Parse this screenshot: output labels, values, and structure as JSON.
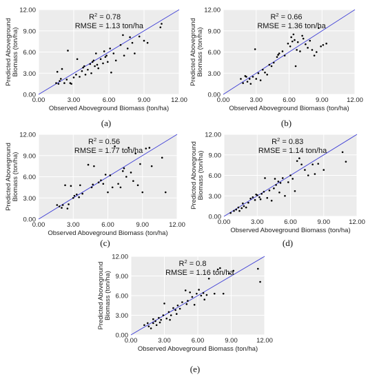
{
  "colors": {
    "panel_bg": "#ececec",
    "grid": "#ffffff",
    "point": "#000000",
    "fit_line": "#3b3bd6"
  },
  "chart_data": [
    {
      "type": "scatter",
      "panel_label": "(a)",
      "xlabel": "Observed Aboveground Biomass (ton/ha)",
      "ylabel": "Predicted Aboveground Biomass (ton/ha)",
      "xlim": [
        0,
        12
      ],
      "ylim": [
        0,
        12
      ],
      "grid": true,
      "x_ticks": [
        "0.00",
        "3.00",
        "6.00",
        "9.00",
        "12.00"
      ],
      "y_ticks": [
        "0.00",
        "3.00",
        "6.00",
        "9.00",
        "12.00"
      ],
      "r2_prefix": "R",
      "r2_sup": "2",
      "r2_value": " = 0.78",
      "rmse_text": "RMSE = 1.13 ton/ha",
      "line": [
        [
          0,
          0
        ],
        [
          12,
          12
        ]
      ],
      "points": [
        [
          1.5,
          1.6
        ],
        [
          1.7,
          1.5
        ],
        [
          1.8,
          1.9
        ],
        [
          1.6,
          3.2
        ],
        [
          2.0,
          3.6
        ],
        [
          2.2,
          1.6
        ],
        [
          2.4,
          2.1
        ],
        [
          2.5,
          6.2
        ],
        [
          2.7,
          1.6
        ],
        [
          3.0,
          2.4
        ],
        [
          3.2,
          2.8
        ],
        [
          3.3,
          5.0
        ],
        [
          3.5,
          2.5
        ],
        [
          3.7,
          3.3
        ],
        [
          3.9,
          4.0
        ],
        [
          4.0,
          2.8
        ],
        [
          4.2,
          3.5
        ],
        [
          4.4,
          4.3
        ],
        [
          4.5,
          3.0
        ],
        [
          4.6,
          4.6
        ],
        [
          4.8,
          4.0
        ],
        [
          4.9,
          5.8
        ],
        [
          5.0,
          4.2
        ],
        [
          5.1,
          3.7
        ],
        [
          5.3,
          5.0
        ],
        [
          5.5,
          4.4
        ],
        [
          5.6,
          6.1
        ],
        [
          5.7,
          5.3
        ],
        [
          5.9,
          4.6
        ],
        [
          6.1,
          6.5
        ],
        [
          6.2,
          3.1
        ],
        [
          6.4,
          5.8
        ],
        [
          6.6,
          4.8
        ],
        [
          7.0,
          7.0
        ],
        [
          7.3,
          5.5
        ],
        [
          7.6,
          6.5
        ],
        [
          7.8,
          8.1
        ],
        [
          8.0,
          7.3
        ],
        [
          8.2,
          5.8
        ],
        [
          8.6,
          8.2
        ],
        [
          9.0,
          7.6
        ],
        [
          9.3,
          7.3
        ],
        [
          10.4,
          9.5
        ],
        [
          10.5,
          10.0
        ],
        [
          2.8,
          1.5
        ],
        [
          3.8,
          3.8
        ],
        [
          4.7,
          4.8
        ],
        [
          5.8,
          5.5
        ],
        [
          7.2,
          8.4
        ],
        [
          1.9,
          2.2
        ]
      ]
    },
    {
      "type": "scatter",
      "panel_label": "(b)",
      "xlabel": "Observed Aboveground Biomass (ton/ha)",
      "ylabel": "Predicted Aboveground Biomass (ton/ha)",
      "xlim": [
        0,
        12
      ],
      "ylim": [
        0,
        12
      ],
      "grid": true,
      "x_ticks": [
        "0.00",
        "3.00",
        "6.00",
        "9.00",
        "12.00"
      ],
      "y_ticks": [
        "0.00",
        "3.00",
        "6.00",
        "9.00",
        "12.00"
      ],
      "r2_prefix": "R",
      "r2_sup": "2",
      "r2_value": " = 0.66",
      "rmse_text": "RMSE = 1.36 ton/ha",
      "line": [
        [
          0,
          0
        ],
        [
          12,
          12
        ]
      ],
      "points": [
        [
          1.6,
          2.2
        ],
        [
          1.8,
          1.6
        ],
        [
          2.0,
          2.6
        ],
        [
          2.2,
          1.8
        ],
        [
          2.4,
          2.2
        ],
        [
          2.5,
          1.5
        ],
        [
          2.7,
          2.5
        ],
        [
          3.0,
          2.2
        ],
        [
          3.2,
          3.0
        ],
        [
          3.4,
          2.0
        ],
        [
          3.6,
          3.5
        ],
        [
          3.8,
          3.1
        ],
        [
          4.0,
          2.8
        ],
        [
          4.2,
          4.2
        ],
        [
          4.4,
          4.0
        ],
        [
          4.6,
          4.5
        ],
        [
          4.9,
          5.3
        ],
        [
          5.1,
          5.8
        ],
        [
          5.4,
          6.1
        ],
        [
          5.6,
          5.5
        ],
        [
          5.9,
          7.2
        ],
        [
          6.1,
          6.8
        ],
        [
          6.2,
          8.1
        ],
        [
          6.4,
          8.5
        ],
        [
          6.5,
          7.7
        ],
        [
          6.6,
          4.0
        ],
        [
          6.7,
          6.3
        ],
        [
          6.8,
          7.4
        ],
        [
          7.0,
          6.1
        ],
        [
          7.2,
          8.3
        ],
        [
          7.5,
          7.1
        ],
        [
          7.7,
          6.6
        ],
        [
          7.9,
          7.6
        ],
        [
          8.1,
          6.3
        ],
        [
          8.3,
          5.5
        ],
        [
          8.5,
          6.0
        ],
        [
          8.7,
          9.4
        ],
        [
          8.9,
          6.8
        ],
        [
          9.1,
          7.0
        ],
        [
          9.4,
          7.2
        ],
        [
          2.9,
          6.4
        ],
        [
          6.3,
          7.5
        ],
        [
          5.0,
          5.6
        ],
        [
          7.3,
          7.9
        ],
        [
          2.1,
          2.5
        ]
      ]
    },
    {
      "type": "scatter",
      "panel_label": "(c)",
      "xlabel": "Observed Aboveground Biomass (ton/ha)",
      "ylabel": "Predicted Aboveground Biomass (ton/ha)",
      "xlim": [
        0,
        12
      ],
      "ylim": [
        0,
        12
      ],
      "grid": true,
      "x_ticks": [
        "0.00",
        "3.00",
        "6.00",
        "9.00",
        "12.00"
      ],
      "y_ticks": [
        "0.00",
        "3.00",
        "6.00",
        "9.00",
        "12.00"
      ],
      "r2_prefix": "R",
      "r2_sup": "2",
      "r2_value": " = 0.56",
      "rmse_text": "RMSE = 1.77 ton/ha",
      "line": [
        [
          0,
          0
        ],
        [
          12,
          12
        ]
      ],
      "points": [
        [
          1.6,
          2.0
        ],
        [
          1.8,
          1.8
        ],
        [
          2.0,
          1.6
        ],
        [
          2.1,
          2.0
        ],
        [
          2.3,
          4.8
        ],
        [
          2.5,
          1.5
        ],
        [
          2.6,
          2.1
        ],
        [
          2.8,
          4.7
        ],
        [
          3.0,
          3.0
        ],
        [
          3.3,
          3.5
        ],
        [
          3.5,
          3.1
        ],
        [
          3.6,
          4.8
        ],
        [
          3.8,
          3.6
        ],
        [
          4.3,
          7.7
        ],
        [
          4.6,
          4.5
        ],
        [
          4.7,
          4.9
        ],
        [
          4.8,
          7.5
        ],
        [
          5.2,
          5.2
        ],
        [
          5.4,
          5.5
        ],
        [
          5.8,
          6.3
        ],
        [
          6.0,
          3.8
        ],
        [
          6.2,
          6.2
        ],
        [
          6.4,
          4.5
        ],
        [
          6.6,
          10.3
        ],
        [
          6.9,
          5.0
        ],
        [
          7.1,
          4.5
        ],
        [
          7.4,
          7.2
        ],
        [
          7.6,
          6.0
        ],
        [
          7.8,
          10.1
        ],
        [
          8.0,
          6.6
        ],
        [
          8.2,
          5.4
        ],
        [
          8.4,
          9.3
        ],
        [
          8.6,
          4.8
        ],
        [
          8.8,
          7.8
        ],
        [
          9.0,
          3.8
        ],
        [
          9.3,
          10.0
        ],
        [
          9.6,
          10.1
        ],
        [
          9.8,
          7.5
        ],
        [
          10.7,
          8.7
        ],
        [
          11.0,
          3.8
        ],
        [
          7.3,
          6.8
        ],
        [
          5.6,
          5.0
        ],
        [
          3.1,
          3.3
        ]
      ]
    },
    {
      "type": "scatter",
      "panel_label": "(d)",
      "xlabel": "Observed Aboveground Biomass (ton/ha)",
      "ylabel": "Predicted Aboveground Biomass (ton/ha)",
      "xlim": [
        0,
        12
      ],
      "ylim": [
        0,
        12
      ],
      "grid": true,
      "x_ticks": [
        "0.00",
        "3.00",
        "6.00",
        "9.00",
        "12.00"
      ],
      "y_ticks": [
        "0.00",
        "3.00",
        "6.00",
        "9.00",
        "12.00"
      ],
      "r2_prefix": "R",
      "r2_sup": "2",
      "r2_value": " = 0.83",
      "rmse_text": "RMSE = 1.14 ton/ha",
      "line": [
        [
          0,
          0
        ],
        [
          12,
          12
        ]
      ],
      "points": [
        [
          0.6,
          0.5
        ],
        [
          0.9,
          0.8
        ],
        [
          1.1,
          1.0
        ],
        [
          1.3,
          1.3
        ],
        [
          1.4,
          0.8
        ],
        [
          1.6,
          1.2
        ],
        [
          1.8,
          1.5
        ],
        [
          2.0,
          1.3
        ],
        [
          2.2,
          2.0
        ],
        [
          2.4,
          2.6
        ],
        [
          2.6,
          2.8
        ],
        [
          2.8,
          2.4
        ],
        [
          3.0,
          3.1
        ],
        [
          3.2,
          2.8
        ],
        [
          3.4,
          3.3
        ],
        [
          3.6,
          3.6
        ],
        [
          3.7,
          5.6
        ],
        [
          3.9,
          2.7
        ],
        [
          4.1,
          3.8
        ],
        [
          4.3,
          2.3
        ],
        [
          4.5,
          4.1
        ],
        [
          4.7,
          4.6
        ],
        [
          4.9,
          5.1
        ],
        [
          5.1,
          4.9
        ],
        [
          5.3,
          5.6
        ],
        [
          5.5,
          3.0
        ],
        [
          5.8,
          5.0
        ],
        [
          6.0,
          6.0
        ],
        [
          6.2,
          5.5
        ],
        [
          6.4,
          3.7
        ],
        [
          6.6,
          8.1
        ],
        [
          6.8,
          8.5
        ],
        [
          7.0,
          7.6
        ],
        [
          7.3,
          6.8
        ],
        [
          7.6,
          6.0
        ],
        [
          8.0,
          7.6
        ],
        [
          8.2,
          6.2
        ],
        [
          8.5,
          7.7
        ],
        [
          9.0,
          6.8
        ],
        [
          10.7,
          9.4
        ],
        [
          11.0,
          8.0
        ],
        [
          4.6,
          5.5
        ],
        [
          2.9,
          3.2
        ],
        [
          1.7,
          1.9
        ],
        [
          5.0,
          3.5
        ],
        [
          3.3,
          2.5
        ]
      ]
    },
    {
      "type": "scatter",
      "panel_label": "(e)",
      "xlabel": "Observed Aboveground Biomass (ton/ha)",
      "ylabel": "Predicted Aboveground Biomass (ton/ha)",
      "xlim": [
        0,
        12
      ],
      "ylim": [
        0,
        12
      ],
      "grid": true,
      "x_ticks": [
        "0.00",
        "3.00",
        "6.00",
        "9.00",
        "12.00"
      ],
      "y_ticks": [
        "0.00",
        "3.00",
        "6.00",
        "9.00",
        "12.00"
      ],
      "r2_prefix": "R",
      "r2_sup": "2",
      "r2_value": " =  0.8",
      "rmse_text": "RMSE = 1.16 ton/ha",
      "line": [
        [
          0,
          0
        ],
        [
          12,
          12
        ]
      ],
      "points": [
        [
          1.2,
          1.5
        ],
        [
          1.6,
          1.3
        ],
        [
          1.8,
          1.0
        ],
        [
          2.0,
          1.8
        ],
        [
          2.2,
          2.1
        ],
        [
          2.3,
          1.5
        ],
        [
          2.5,
          2.6
        ],
        [
          2.7,
          2.3
        ],
        [
          2.9,
          3.0
        ],
        [
          3.0,
          4.8
        ],
        [
          3.2,
          2.5
        ],
        [
          3.4,
          3.5
        ],
        [
          3.6,
          3.0
        ],
        [
          3.8,
          4.1
        ],
        [
          4.0,
          3.8
        ],
        [
          4.2,
          4.5
        ],
        [
          4.4,
          4.0
        ],
        [
          4.6,
          5.0
        ],
        [
          4.9,
          6.8
        ],
        [
          5.1,
          5.2
        ],
        [
          5.3,
          6.5
        ],
        [
          5.5,
          5.8
        ],
        [
          5.7,
          4.6
        ],
        [
          5.9,
          6.3
        ],
        [
          6.1,
          6.9
        ],
        [
          6.3,
          6.0
        ],
        [
          6.5,
          6.4
        ],
        [
          6.8,
          6.1
        ],
        [
          7.0,
          8.6
        ],
        [
          7.5,
          6.3
        ],
        [
          7.8,
          10.0
        ],
        [
          8.0,
          10.2
        ],
        [
          8.3,
          6.3
        ],
        [
          8.8,
          9.4
        ],
        [
          9.2,
          9.8
        ],
        [
          11.4,
          10.1
        ],
        [
          11.6,
          8.1
        ],
        [
          2.6,
          1.9
        ],
        [
          3.5,
          2.3
        ],
        [
          4.1,
          3.2
        ],
        [
          5.0,
          4.7
        ],
        [
          6.6,
          5.4
        ],
        [
          2.0,
          2.4
        ],
        [
          1.5,
          1.8
        ]
      ]
    }
  ]
}
